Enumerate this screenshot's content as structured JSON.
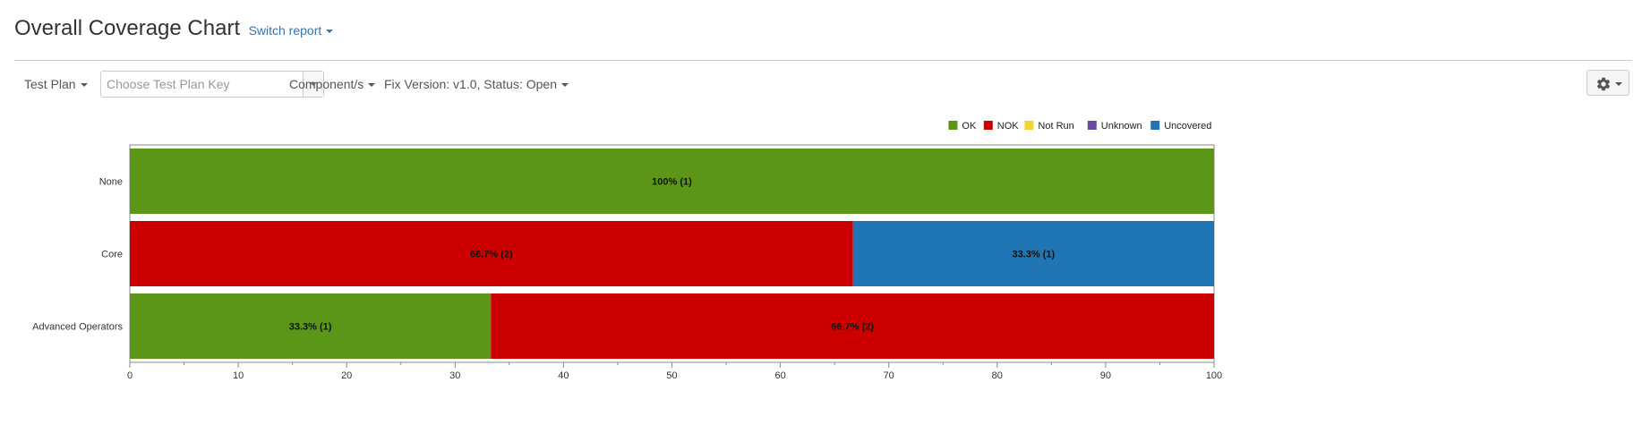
{
  "header": {
    "title": "Overall Coverage Chart",
    "switch_report": "Switch report"
  },
  "toolbar": {
    "test_plan_label": "Test Plan",
    "test_plan_placeholder": "Choose Test Plan Key",
    "components_label": "Component/s",
    "fix_version_label": "Fix Version: v1.0, Status: Open"
  },
  "icons": {
    "settings": "gear-icon",
    "dropdown": "chevron-down-icon"
  },
  "chart_data": {
    "type": "bar",
    "orientation": "horizontal",
    "stacked": true,
    "categories": [
      "None",
      "Core",
      "Advanced Operators"
    ],
    "series": [
      {
        "name": "OK",
        "color": "#5b9619",
        "values": [
          100,
          0,
          33.3
        ],
        "counts": [
          1,
          0,
          1
        ]
      },
      {
        "name": "NOK",
        "color": "#cc0000",
        "values": [
          0,
          66.7,
          66.7
        ],
        "counts": [
          0,
          2,
          2
        ]
      },
      {
        "name": "Not Run",
        "color": "#f2d62e",
        "values": [
          0,
          0,
          0
        ],
        "counts": [
          0,
          0,
          0
        ]
      },
      {
        "name": "Unknown",
        "color": "#6b4aa0",
        "values": [
          0,
          0,
          0
        ],
        "counts": [
          0,
          0,
          0
        ]
      },
      {
        "name": "Uncovered",
        "color": "#2076b4",
        "values": [
          0,
          33.3,
          0
        ],
        "counts": [
          0,
          1,
          0
        ]
      }
    ],
    "data_labels": [
      [
        "100% (1)"
      ],
      [
        "66.7% (2)",
        "33.3% (1)"
      ],
      [
        "33.3% (1)",
        "66.7% (2)"
      ]
    ],
    "xlim": [
      0,
      100
    ],
    "xticks": [
      0,
      10,
      20,
      30,
      40,
      50,
      60,
      70,
      80,
      90,
      100
    ],
    "legend_position": "top-right",
    "grid": false
  }
}
